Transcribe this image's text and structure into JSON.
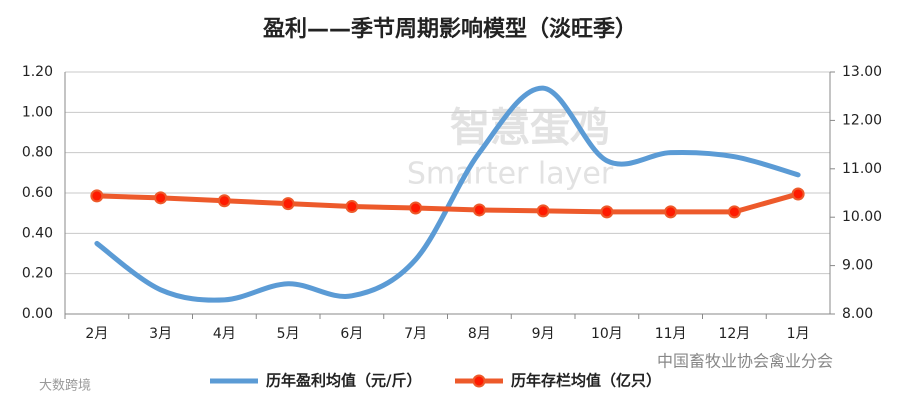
{
  "chart_data": {
    "type": "line",
    "title": "盈利——季节周期影响模型（淡旺季）",
    "categories": [
      "2月",
      "3月",
      "4月",
      "5月",
      "6月",
      "7月",
      "8月",
      "9月",
      "10月",
      "11月",
      "12月",
      "1月"
    ],
    "series": [
      {
        "name": "历年盈利均值（元/斤）",
        "color": "#5b9bd5",
        "smooth": true,
        "values": [
          0.35,
          0.12,
          0.07,
          0.15,
          0.09,
          0.27,
          0.8,
          1.12,
          0.76,
          0.8,
          0.78,
          0.69
        ]
      },
      {
        "name": "历年存栏均值（亿只）",
        "color": "#ed5a2b",
        "axis": "y2",
        "markers": true,
        "values": [
          10.44,
          10.4,
          10.34,
          10.28,
          10.22,
          10.19,
          10.15,
          10.13,
          10.11,
          10.11,
          10.11,
          10.48
        ]
      }
    ],
    "ylim": [
      0,
      1.2
    ],
    "yticks": [
      {
        "value": 0,
        "label": "0.00"
      },
      {
        "value": 0.2,
        "label": "0.20"
      },
      {
        "value": 0.4,
        "label": "0.40"
      },
      {
        "value": 0.6,
        "label": "0.60"
      },
      {
        "value": 0.8,
        "label": "0.80"
      },
      {
        "value": 1.0,
        "label": "1.00"
      },
      {
        "value": 1.2,
        "label": "1.20"
      }
    ],
    "y2lim": [
      8,
      13
    ],
    "y2ticks": [
      {
        "value": 8,
        "label": "8.00"
      },
      {
        "value": 9,
        "label": "9.00"
      },
      {
        "value": 10,
        "label": "10.00"
      },
      {
        "value": 11,
        "label": "11.00"
      },
      {
        "value": 12,
        "label": "12.00"
      },
      {
        "value": 13,
        "label": "13.00"
      }
    ],
    "grid": true,
    "legend": "bottom",
    "annotations": [
      "智慧蛋鸡",
      "Smarter layer",
      "中国畜牧业协会禽业分会",
      "大数跨境"
    ]
  }
}
